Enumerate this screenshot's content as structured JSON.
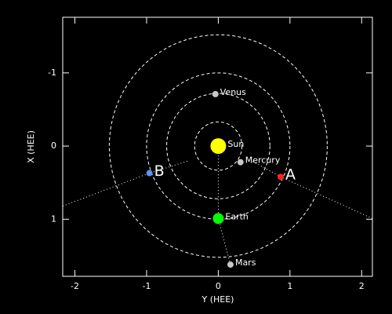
{
  "chart_data": {
    "type": "scatter",
    "xlabel": "Y (HEE)",
    "ylabel": "X (HEE)",
    "xlim": [
      -2.17,
      2.15
    ],
    "ylim": [
      -1.76,
      1.78
    ],
    "y_reversed": true,
    "xticks": [
      -2,
      -1,
      0,
      1,
      2
    ],
    "yticks": [
      -1,
      0,
      1
    ],
    "orbits": [
      0.33,
      0.72,
      1.0,
      1.52
    ],
    "lines": [
      {
        "x": [
          -2.17,
          -0.96,
          -0.41
        ],
        "y": [
          0.82,
          0.37,
          0.2
        ]
      },
      {
        "x": [
          2.15,
          0.87,
          0.46
        ],
        "y": [
          0.99,
          0.42,
          0.2
        ]
      },
      {
        "x": [
          0,
          0,
          0.17
        ],
        "y": [
          0,
          0.99,
          1.62
        ]
      }
    ],
    "points": [
      {
        "name": "Sun",
        "color": "#ffff00",
        "x": 0,
        "y": 0,
        "marker": "large",
        "label_size": "small"
      },
      {
        "name": "Venus",
        "color": "#c8c8c8",
        "x": -0.04,
        "y": -0.71,
        "marker": "small",
        "label_size": "small"
      },
      {
        "name": "Mercury",
        "color": "#c8c8c8",
        "x": 0.31,
        "y": 0.22,
        "marker": "small",
        "label_size": "small"
      },
      {
        "name": "Earth",
        "color": "#00ff00",
        "x": 0,
        "y": 0.99,
        "marker": "medium",
        "label_size": "small"
      },
      {
        "name": "Mars",
        "color": "#c8c8c8",
        "x": 0.17,
        "y": 1.62,
        "marker": "small",
        "label_size": "small"
      },
      {
        "name": "A",
        "color": "#ff2020",
        "x": 0.87,
        "y": 0.42,
        "marker": "small",
        "label_size": "large"
      },
      {
        "name": "B",
        "color": "#6090ff",
        "x": -0.96,
        "y": 0.37,
        "marker": "small",
        "label_size": "large"
      }
    ]
  }
}
